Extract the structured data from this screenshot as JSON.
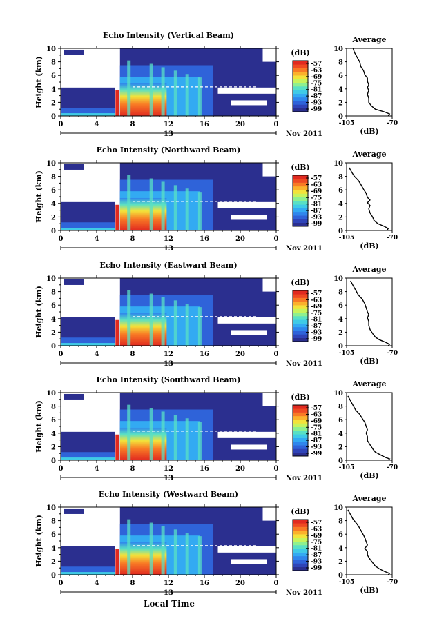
{
  "figure": {
    "xlabel": "Local Time"
  },
  "colorbar": {
    "unit": "(dB)",
    "ticks": [
      "-57",
      "-63",
      "-69",
      "-75",
      "-81",
      "-87",
      "-93",
      "-99"
    ],
    "colors": [
      "#2b2f8f",
      "#2f44b8",
      "#2f63d9",
      "#2f86ec",
      "#33aaf2",
      "#3fcbe6",
      "#59e0c4",
      "#8ef08f",
      "#c7f35c",
      "#f3e23a",
      "#fbb12c",
      "#f87a25",
      "#ef4a22",
      "#e12a20"
    ]
  },
  "panels": [
    {
      "title": "Echo Intensity (Vertical Beam)",
      "profile": [
        [
          -100,
          10
        ],
        [
          -99,
          9.4
        ],
        [
          -97,
          8.7
        ],
        [
          -95,
          8.0
        ],
        [
          -94,
          7.3
        ],
        [
          -92,
          6.7
        ],
        [
          -91,
          6.1
        ],
        [
          -89,
          5.6
        ],
        [
          -89,
          5.1
        ],
        [
          -88,
          4.6
        ],
        [
          -89,
          4.2
        ],
        [
          -88,
          3.8
        ],
        [
          -89,
          3.2
        ],
        [
          -88,
          2.6
        ],
        [
          -88,
          2.0
        ],
        [
          -86,
          1.5
        ],
        [
          -83,
          1.0
        ],
        [
          -76,
          0.6
        ],
        [
          -72,
          0.3
        ],
        [
          -73,
          0
        ]
      ]
    },
    {
      "title": "Echo Intensity (Northward Beam)",
      "profile": [
        [
          -103,
          9.3
        ],
        [
          -101,
          8.6
        ],
        [
          -99,
          8.0
        ],
        [
          -96,
          7.4
        ],
        [
          -94,
          6.8
        ],
        [
          -92,
          6.1
        ],
        [
          -90,
          5.5
        ],
        [
          -89,
          4.9
        ],
        [
          -87,
          4.5
        ],
        [
          -89,
          4.1
        ],
        [
          -87,
          3.7
        ],
        [
          -88,
          3.2
        ],
        [
          -87,
          2.6
        ],
        [
          -85,
          2.0
        ],
        [
          -84,
          1.5
        ],
        [
          -81,
          1.0
        ],
        [
          -76,
          0.6
        ],
        [
          -73,
          0.3
        ],
        [
          -74,
          0
        ]
      ]
    },
    {
      "title": "Echo Intensity (Eastward Beam)",
      "profile": [
        [
          -102,
          9.6
        ],
        [
          -100,
          8.9
        ],
        [
          -98,
          8.2
        ],
        [
          -96,
          7.5
        ],
        [
          -93,
          6.9
        ],
        [
          -91,
          6.2
        ],
        [
          -90,
          5.6
        ],
        [
          -89,
          5.0
        ],
        [
          -88,
          4.6
        ],
        [
          -89,
          4.1
        ],
        [
          -88,
          3.6
        ],
        [
          -88,
          3.0
        ],
        [
          -87,
          2.4
        ],
        [
          -85,
          1.8
        ],
        [
          -83,
          1.3
        ],
        [
          -80,
          0.9
        ],
        [
          -75,
          0.5
        ],
        [
          -72,
          0.2
        ],
        [
          -73,
          0
        ]
      ]
    },
    {
      "title": "Echo Intensity (Southward Beam)",
      "profile": [
        [
          -104,
          9.5
        ],
        [
          -102,
          8.8
        ],
        [
          -100,
          8.1
        ],
        [
          -98,
          7.4
        ],
        [
          -95,
          6.8
        ],
        [
          -93,
          6.2
        ],
        [
          -91,
          5.6
        ],
        [
          -90,
          5.0
        ],
        [
          -89,
          4.5
        ],
        [
          -90,
          4.0
        ],
        [
          -89,
          3.5
        ],
        [
          -89,
          2.9
        ],
        [
          -87,
          2.3
        ],
        [
          -85,
          1.7
        ],
        [
          -83,
          1.2
        ],
        [
          -79,
          0.8
        ],
        [
          -75,
          0.4
        ],
        [
          -72,
          0.2
        ],
        [
          -73,
          0
        ]
      ]
    },
    {
      "title": "Echo Intensity (Westward Beam)",
      "profile": [
        [
          -104,
          9.6
        ],
        [
          -102,
          8.9
        ],
        [
          -100,
          8.2
        ],
        [
          -97,
          7.5
        ],
        [
          -95,
          6.9
        ],
        [
          -93,
          6.2
        ],
        [
          -91,
          5.5
        ],
        [
          -90,
          4.9
        ],
        [
          -89,
          4.4
        ],
        [
          -91,
          3.9
        ],
        [
          -89,
          3.4
        ],
        [
          -89,
          2.9
        ],
        [
          -87,
          2.3
        ],
        [
          -85,
          1.8
        ],
        [
          -83,
          1.3
        ],
        [
          -80,
          0.9
        ],
        [
          -76,
          0.5
        ],
        [
          -72,
          0.2
        ],
        [
          -73,
          0
        ]
      ]
    }
  ],
  "axes": {
    "time_ticks": [
      "0",
      "4",
      "8",
      "12",
      "16",
      "20",
      "0"
    ],
    "height_ticks": [
      "0",
      "2",
      "4",
      "6",
      "8",
      "10"
    ],
    "date_top": "13",
    "date_bottom": "Nov 2011",
    "ylabel": "Height (km)",
    "profile_title": "Average",
    "profile_xticks": [
      "-105",
      "-70"
    ],
    "profile_xlabel": "(dB)"
  },
  "chart_data": {
    "type": "heatmap",
    "x_range_hours": [
      0,
      24
    ],
    "y_range_km": [
      0,
      10
    ],
    "color_range_dB": [
      -99,
      -57
    ],
    "profile_x_range_dB": [
      -105,
      -70
    ],
    "profile_y_range_km": [
      0,
      10
    ]
  }
}
